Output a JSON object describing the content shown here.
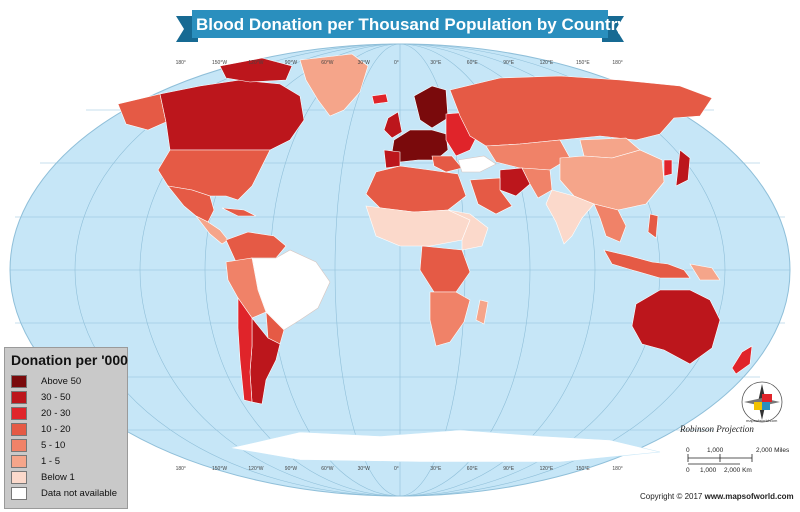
{
  "title": "Blood Donation per Thousand Population by Country",
  "colors": {
    "ocean": "#c6e6f7",
    "no_data": "#ffffff",
    "below_1": "#fbd9cb",
    "r1_5": "#f5a58a",
    "r5_10": "#f08268",
    "r10_20": "#e55a45",
    "r20_30": "#e0242a",
    "r30_50": "#bc161c",
    "above_50": "#7a0a0c",
    "banner": "#2a8fbe",
    "banner_dark": "#176a93"
  },
  "legend": {
    "title": "Donation per '000",
    "items": [
      {
        "label": "Above 50",
        "color": "#7a0a0c"
      },
      {
        "label": "30 - 50",
        "color": "#bc161c"
      },
      {
        "label": "20 - 30",
        "color": "#e0242a"
      },
      {
        "label": "10 - 20",
        "color": "#e55a45"
      },
      {
        "label": "5 - 10",
        "color": "#f08268"
      },
      {
        "label": "1 - 5",
        "color": "#f5a58a"
      },
      {
        "label": "Below 1",
        "color": "#fbd9cb"
      },
      {
        "label": "Data not available",
        "color": "#ffffff"
      }
    ]
  },
  "longitude_labels": [
    "180°",
    "150°W",
    "120°W",
    "90°W",
    "60°W",
    "30°W",
    "0°",
    "30°E",
    "60°E",
    "90°E",
    "120°E",
    "150°E",
    "180°"
  ],
  "projection": "Robinson Projection",
  "scale": {
    "miles_unit": "2,000 Miles",
    "km_unit": "2,000 Km",
    "zero": "0",
    "thousand": "1,000",
    "two_thousand": "2,000"
  },
  "copyright": {
    "prefix": "Copyright © 2017",
    "site": "www.mapsofworld.com"
  },
  "compass_text": "mapsofworld.com"
}
